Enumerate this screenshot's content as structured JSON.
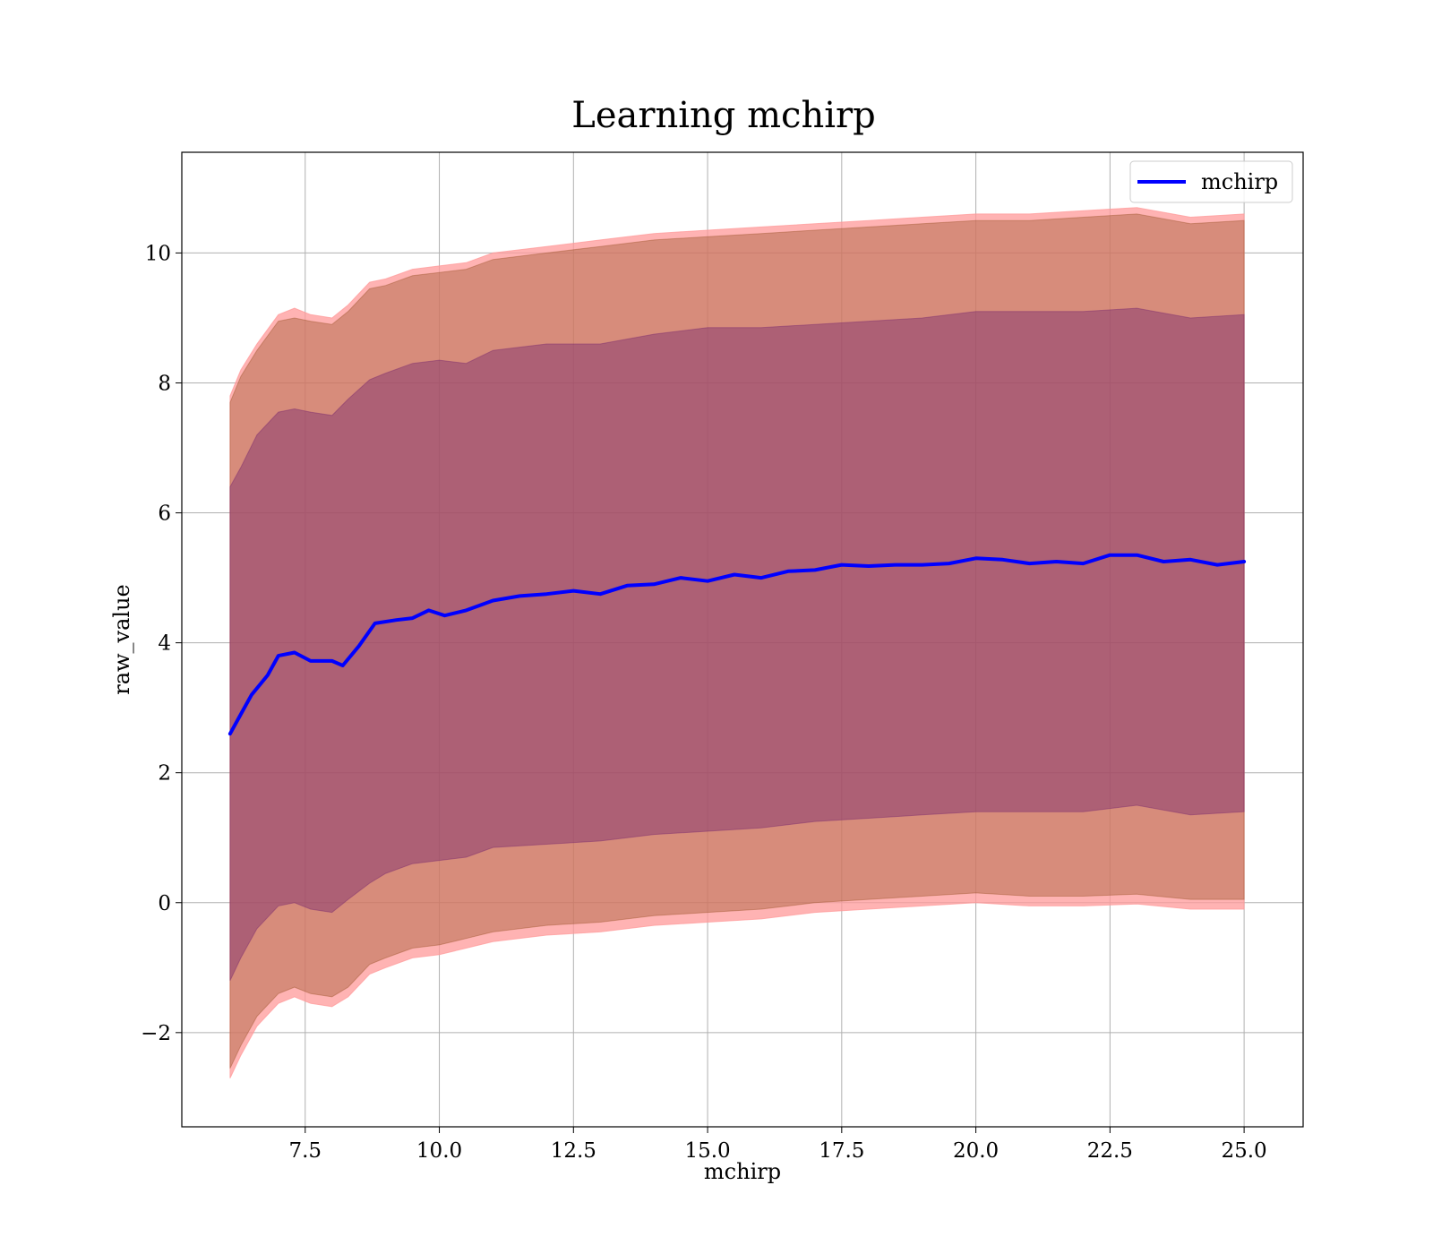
{
  "chart_data": {
    "type": "line",
    "title": "Learning mchirp",
    "xlabel": "mchirp",
    "ylabel": "raw_value",
    "xlim": [
      5.2,
      26.1
    ],
    "ylim": [
      -3.45,
      11.55
    ],
    "xticks": [
      7.5,
      10.0,
      12.5,
      15.0,
      17.5,
      20.0,
      22.5,
      25.0
    ],
    "xtick_labels": [
      "7.5",
      "10.0",
      "12.5",
      "15.0",
      "17.5",
      "20.0",
      "22.5",
      "25.0"
    ],
    "yticks": [
      -2,
      0,
      2,
      4,
      6,
      8,
      10
    ],
    "ytick_labels": [
      "−2",
      "0",
      "2",
      "4",
      "6",
      "8",
      "10"
    ],
    "grid": true,
    "legend_position": "top-right",
    "series": [
      {
        "name": "mchirp",
        "color": "#0000ff",
        "x": [
          6.1,
          6.3,
          6.5,
          6.8,
          7.0,
          7.3,
          7.6,
          8.0,
          8.2,
          8.5,
          8.8,
          9.2,
          9.5,
          9.8,
          10.1,
          10.5,
          11.0,
          11.5,
          12.0,
          12.5,
          13.0,
          13.5,
          14.0,
          14.5,
          15.0,
          15.5,
          16.0,
          16.5,
          17.0,
          17.5,
          18.0,
          18.5,
          19.0,
          19.5,
          20.0,
          20.5,
          21.0,
          21.5,
          22.0,
          22.5,
          23.0,
          23.5,
          24.0,
          24.5,
          25.0
        ],
        "y": [
          2.6,
          2.9,
          3.2,
          3.5,
          3.8,
          3.85,
          3.72,
          3.72,
          3.65,
          3.95,
          4.3,
          4.35,
          4.38,
          4.5,
          4.42,
          4.5,
          4.65,
          4.72,
          4.75,
          4.8,
          4.75,
          4.88,
          4.9,
          5.0,
          4.95,
          5.05,
          5.0,
          5.1,
          5.12,
          5.2,
          5.18,
          5.2,
          5.2,
          5.22,
          5.3,
          5.28,
          5.22,
          5.25,
          5.22,
          5.35,
          5.35,
          5.25,
          5.28,
          5.2,
          5.25
        ]
      }
    ],
    "bands": [
      {
        "color": "#ff9999",
        "opacity": 0.75,
        "x": [
          6.1,
          6.3,
          6.6,
          7.0,
          7.3,
          7.6,
          8.0,
          8.3,
          8.7,
          9.0,
          9.5,
          10.0,
          10.5,
          11.0,
          12.0,
          13.0,
          14.0,
          15.0,
          16.0,
          17.0,
          18.0,
          19.0,
          20.0,
          21.0,
          22.0,
          23.0,
          24.0,
          25.0
        ],
        "upper": [
          7.8,
          8.2,
          8.6,
          9.05,
          9.15,
          9.05,
          9.0,
          9.2,
          9.55,
          9.6,
          9.75,
          9.8,
          9.85,
          10.0,
          10.1,
          10.2,
          10.3,
          10.35,
          10.4,
          10.45,
          10.5,
          10.55,
          10.6,
          10.6,
          10.65,
          10.7,
          10.55,
          10.6
        ],
        "lower": [
          -2.7,
          -2.35,
          -1.9,
          -1.55,
          -1.45,
          -1.55,
          -1.6,
          -1.45,
          -1.1,
          -1.0,
          -0.85,
          -0.8,
          -0.7,
          -0.6,
          -0.5,
          -0.45,
          -0.35,
          -0.3,
          -0.25,
          -0.15,
          -0.1,
          -0.05,
          0.0,
          -0.05,
          -0.05,
          -0.02,
          -0.1,
          -0.1
        ]
      },
      {
        "color": "#8b4513",
        "opacity": 0.35,
        "x": [
          6.1,
          6.3,
          6.6,
          7.0,
          7.3,
          7.6,
          8.0,
          8.3,
          8.7,
          9.0,
          9.5,
          10.0,
          10.5,
          11.0,
          12.0,
          13.0,
          14.0,
          15.0,
          16.0,
          17.0,
          18.0,
          19.0,
          20.0,
          21.0,
          22.0,
          23.0,
          24.0,
          25.0
        ],
        "upper": [
          7.7,
          8.1,
          8.5,
          8.95,
          9.0,
          8.95,
          8.9,
          9.1,
          9.45,
          9.5,
          9.65,
          9.7,
          9.75,
          9.9,
          10.0,
          10.1,
          10.2,
          10.25,
          10.3,
          10.35,
          10.4,
          10.45,
          10.5,
          10.5,
          10.55,
          10.6,
          10.45,
          10.5
        ],
        "lower": [
          -2.55,
          -2.2,
          -1.75,
          -1.4,
          -1.3,
          -1.4,
          -1.45,
          -1.3,
          -0.95,
          -0.85,
          -0.7,
          -0.65,
          -0.55,
          -0.45,
          -0.35,
          -0.3,
          -0.2,
          -0.15,
          -0.1,
          0.0,
          0.05,
          0.1,
          0.15,
          0.1,
          0.1,
          0.13,
          0.05,
          0.05
        ]
      },
      {
        "color": "#7b2a6e",
        "opacity": 0.45,
        "x": [
          6.1,
          6.3,
          6.6,
          7.0,
          7.3,
          7.6,
          8.0,
          8.3,
          8.7,
          9.0,
          9.5,
          10.0,
          10.5,
          11.0,
          12.0,
          13.0,
          14.0,
          15.0,
          16.0,
          17.0,
          18.0,
          19.0,
          20.0,
          21.0,
          22.0,
          23.0,
          24.0,
          25.0
        ],
        "upper": [
          6.4,
          6.7,
          7.2,
          7.55,
          7.6,
          7.55,
          7.5,
          7.75,
          8.05,
          8.15,
          8.3,
          8.35,
          8.3,
          8.5,
          8.6,
          8.6,
          8.75,
          8.85,
          8.85,
          8.9,
          8.95,
          9.0,
          9.1,
          9.1,
          9.1,
          9.15,
          9.0,
          9.05
        ],
        "lower": [
          -1.2,
          -0.85,
          -0.4,
          -0.05,
          0.0,
          -0.1,
          -0.15,
          0.05,
          0.3,
          0.45,
          0.6,
          0.65,
          0.7,
          0.85,
          0.9,
          0.95,
          1.05,
          1.1,
          1.15,
          1.25,
          1.3,
          1.35,
          1.4,
          1.4,
          1.4,
          1.5,
          1.35,
          1.4
        ]
      }
    ]
  }
}
